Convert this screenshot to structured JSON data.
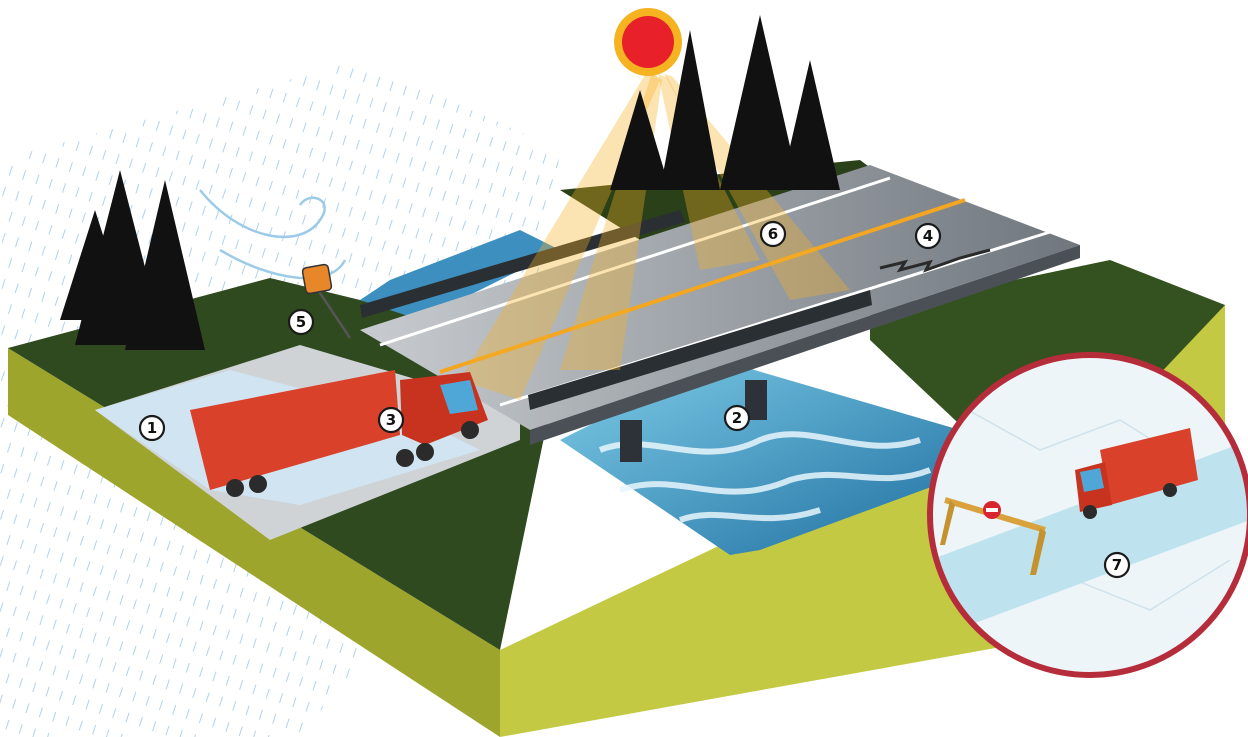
{
  "markers": [
    {
      "id": "marker-1",
      "label": "1"
    },
    {
      "id": "marker-2",
      "label": "2"
    },
    {
      "id": "marker-3",
      "label": "3"
    },
    {
      "id": "marker-4",
      "label": "4"
    },
    {
      "id": "marker-5",
      "label": "5"
    },
    {
      "id": "marker-6",
      "label": "6"
    },
    {
      "id": "marker-7",
      "label": "7"
    }
  ],
  "colors": {
    "sun": "#e8202a",
    "sun_rays": "#f5b321",
    "grass_top": "#2f4a1e",
    "ground_side": "#b9c13a",
    "road": "#8e959c",
    "water": "#3a9bc7",
    "truck": "#d9412a",
    "inset_border": "#b52d3a",
    "trees": "#111111"
  },
  "icons": [
    "sun-icon",
    "tree-icon",
    "truck-icon",
    "curve-warning-sign-icon",
    "road-barrier-icon",
    "no-entry-sign-icon",
    "crack-icon",
    "wind-icon"
  ]
}
